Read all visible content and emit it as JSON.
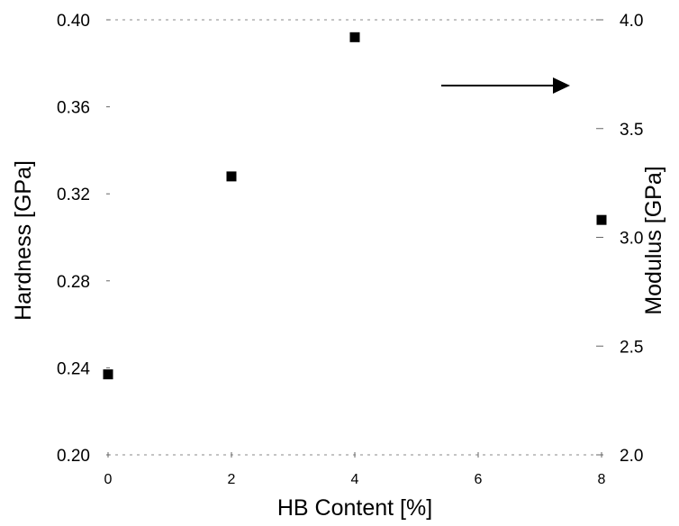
{
  "chart_data": {
    "type": "scatter",
    "title": "",
    "xlabel": "HB Content [%]",
    "ylabel": "Hardness [GPa]",
    "ylabel_right": "Modulus [GPa]",
    "x_ticks": [
      "0",
      "2",
      "4",
      "6",
      "8"
    ],
    "y_ticks": [
      "0.20",
      "0.24",
      "0.28",
      "0.32",
      "0.36",
      "0.40"
    ],
    "y2_ticks": [
      "2.0",
      "2.5",
      "3.0",
      "3.5",
      "4.0"
    ],
    "xlim": [
      0,
      8
    ],
    "ylim": [
      0.2,
      0.4
    ],
    "y2lim": [
      2.0,
      4.0
    ],
    "grid": false,
    "series": [
      {
        "points": [
          {
            "x": 0,
            "y": 0.237
          },
          {
            "x": 2,
            "y": 0.328
          },
          {
            "x": 4,
            "y": 0.392
          },
          {
            "x": 8,
            "y": 0.308
          }
        ]
      }
    ],
    "annotations": [
      {
        "type": "arrow",
        "direction": "right",
        "meaning": "points to right axis"
      }
    ],
    "marker_color": "#000000"
  }
}
